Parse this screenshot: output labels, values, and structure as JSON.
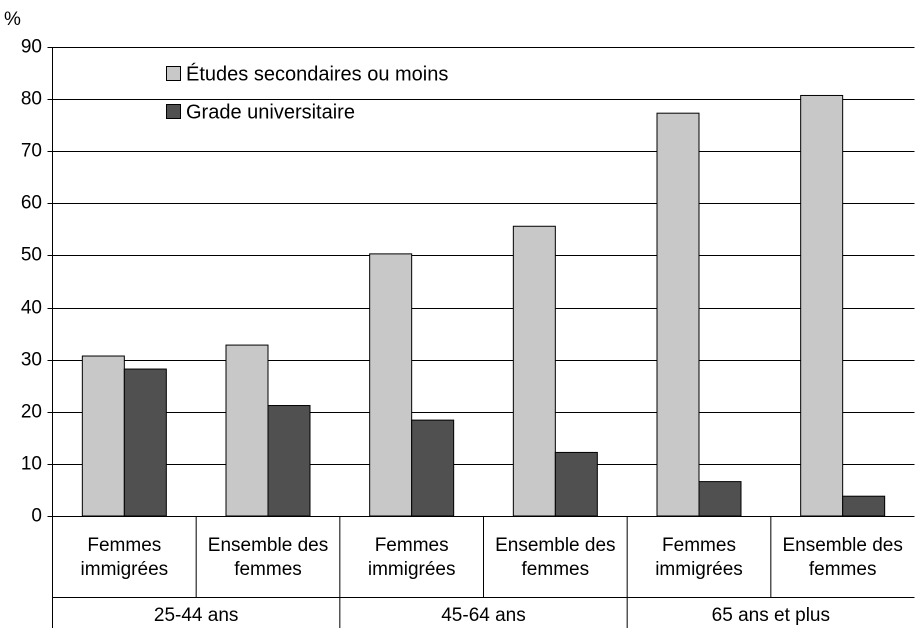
{
  "chart_data": {
    "type": "bar",
    "y_label": "%",
    "categories": [
      [
        "Femmes",
        "immigrées"
      ],
      [
        "Ensemble des",
        "femmes"
      ],
      [
        "Femmes",
        "immigrées"
      ],
      [
        "Ensemble des",
        "femmes"
      ],
      [
        "Femmes",
        "immigrées"
      ],
      [
        "Ensemble des",
        "femmes"
      ]
    ],
    "groups": [
      "25-44 ans",
      "45-64 ans",
      "65 ans et plus"
    ],
    "series": [
      {
        "name": "Études secondaires ou moins",
        "color": "#c8c8c8",
        "values": [
          30.7,
          32.8,
          50.3,
          55.6,
          77.3,
          80.7
        ]
      },
      {
        "name": "Grade universitaire",
        "color": "#505050",
        "values": [
          28.2,
          21.2,
          18.4,
          12.2,
          6.6,
          3.8
        ]
      }
    ],
    "ylim": [
      0,
      90
    ],
    "yticks": [
      0,
      10,
      20,
      30,
      40,
      50,
      60,
      70,
      80,
      90
    ],
    "grid": true,
    "legend": "top-left"
  }
}
